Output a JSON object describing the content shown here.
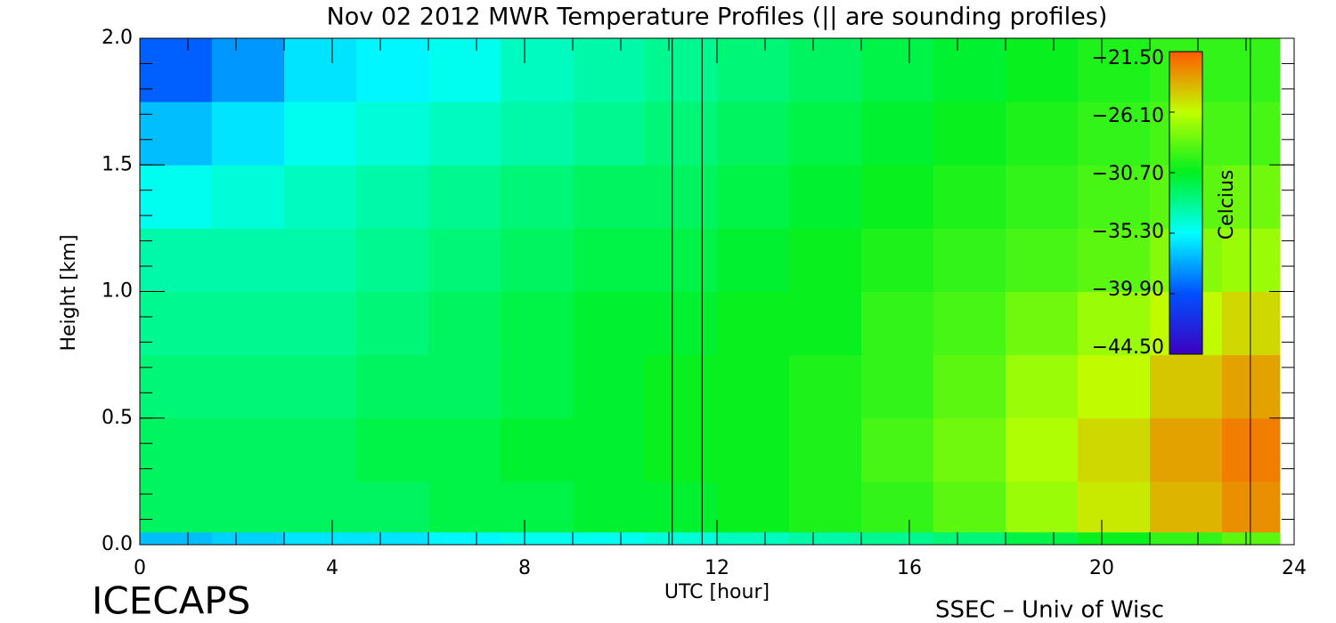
{
  "chart_data": {
    "type": "heatmap",
    "title": "Nov 02 2012 MWR Temperature Profiles (|| are sounding profiles)",
    "xlabel": "UTC [hour]",
    "ylabel": "Height [km]",
    "colorbar_label": "Celcius",
    "footer_left": "ICECAPS",
    "footer_right": "SSEC – Univ of Wisc",
    "xlim": [
      0,
      24
    ],
    "ylim": [
      0,
      2
    ],
    "xticks": [
      0,
      4,
      8,
      12,
      16,
      20,
      24
    ],
    "yticks": [
      {
        "value": 0,
        "label": "0.0"
      },
      {
        "value": 0.5,
        "label": "0.5"
      },
      {
        "value": 1,
        "label": "1.0"
      },
      {
        "value": 1.5,
        "label": "1.5"
      },
      {
        "value": 2,
        "label": "2.0"
      }
    ],
    "x_bins": [
      0,
      1.5,
      3,
      4.5,
      6,
      7.5,
      9,
      10.5,
      12,
      13.5,
      15,
      16.5,
      18,
      19.5,
      21,
      22.5,
      23.7
    ],
    "y_bins": [
      0,
      0.05,
      0.25,
      0.5,
      0.75,
      1.0,
      1.25,
      1.5,
      1.75,
      2.0
    ],
    "z": [
      [
        -37,
        -36.5,
        -36,
        -36,
        -35.5,
        -35,
        -35,
        -34.5,
        -34,
        -33.5,
        -33,
        -32.5,
        -31.5,
        -30.5,
        -29.5,
        -28.5
      ],
      [
        -32,
        -32,
        -32,
        -32,
        -31.5,
        -31.5,
        -31,
        -31,
        -30.5,
        -30,
        -29.5,
        -28.5,
        -27,
        -25.5,
        -24,
        -23
      ],
      [
        -32,
        -32,
        -32,
        -31.5,
        -31.5,
        -31,
        -31,
        -30.5,
        -30.5,
        -30,
        -29,
        -28,
        -26.5,
        -25,
        -23.5,
        -22.5
      ],
      [
        -32.5,
        -32.5,
        -32.5,
        -32,
        -32,
        -31.5,
        -31,
        -30.5,
        -30.5,
        -30,
        -29.5,
        -28.5,
        -27,
        -26,
        -24.5,
        -23.5
      ],
      [
        -33,
        -33,
        -33,
        -32.5,
        -32,
        -31.5,
        -31,
        -31,
        -30.5,
        -30.5,
        -29.5,
        -29,
        -28,
        -27,
        -26,
        -25
      ],
      [
        -33.5,
        -33.5,
        -33.5,
        -33,
        -32.5,
        -32,
        -31.5,
        -31.5,
        -31,
        -30.5,
        -30,
        -29.5,
        -29,
        -28.5,
        -27.5,
        -27
      ],
      [
        -35,
        -34.5,
        -34,
        -33.5,
        -33,
        -32.5,
        -32,
        -32,
        -31.5,
        -31,
        -30.5,
        -30,
        -29.5,
        -29,
        -28.5,
        -28
      ],
      [
        -37,
        -36,
        -35,
        -34.5,
        -34,
        -33.5,
        -33,
        -32.5,
        -32,
        -31.5,
        -31,
        -30.5,
        -30,
        -29.5,
        -29,
        -29
      ],
      [
        -39.5,
        -38,
        -36,
        -35.5,
        -35,
        -34,
        -33.5,
        -33,
        -32.5,
        -32,
        -31.5,
        -31,
        -30.5,
        -30,
        -29.5,
        -29.5
      ]
    ],
    "sounding_times": [
      11.07,
      11.69,
      23.09
    ],
    "colorbar_ticks": [
      {
        "value": -21.5,
        "label": "−21.50"
      },
      {
        "value": -26.1,
        "label": "−26.10"
      },
      {
        "value": -30.7,
        "label": "−30.70"
      },
      {
        "value": -35.3,
        "label": "−35.30"
      },
      {
        "value": -39.9,
        "label": "−39.90"
      },
      {
        "value": -44.5,
        "label": "−44.50"
      }
    ],
    "colorscale_colors": [
      "#ff5a00",
      "#c0ff00",
      "#00f020",
      "#00ffff",
      "#0050ff",
      "#3c00c0"
    ]
  }
}
